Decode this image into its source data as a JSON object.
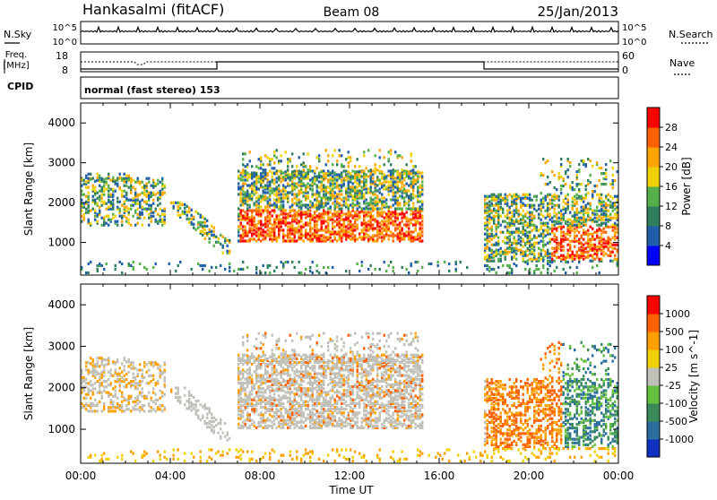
{
  "header": {
    "station": "Hankasalmi (fitACF)",
    "beam": "Beam 08",
    "date": "25/Jan/2013"
  },
  "noise_panel": {
    "left_label": "N.Sky",
    "left_ticks": [
      "10^5",
      "10^0"
    ],
    "right_label": "N.Search",
    "right_ticks": [
      "10^5",
      "10^0"
    ]
  },
  "freq_panel": {
    "left_label_1": "Freq.",
    "left_label_2": "[MHz]",
    "left_ticks": [
      "18",
      "8"
    ],
    "right_label": "Nave",
    "right_ticks": [
      "60",
      "0"
    ]
  },
  "cpid_panel": {
    "label": "CPID",
    "text": "normal (fast stereo) 153"
  },
  "chart_data": [
    {
      "type": "heatmap",
      "name": "power",
      "ylabel": "Slant Range [km]",
      "yticks": [
        "4000",
        "3000",
        "2000",
        "1000"
      ],
      "ylim": [
        180,
        4500
      ],
      "xlim": [
        0,
        24
      ],
      "colorbar_label": "Power [dB]",
      "colorbar_ticks": [
        "28",
        "24",
        "20",
        "16",
        "12",
        "8",
        "4"
      ],
      "colors": [
        "#0000ff",
        "#1f5fa8",
        "#2f7f5f",
        "#56b04a",
        "#f0d000",
        "#ffa500",
        "#ff6000",
        "#ff0000"
      ]
    },
    {
      "type": "heatmap",
      "name": "velocity",
      "ylabel": "Slant Range [km]",
      "yticks": [
        "4000",
        "3000",
        "2000",
        "1000"
      ],
      "ylim": [
        180,
        4500
      ],
      "xlim": [
        0,
        24
      ],
      "colorbar_label": "Velocity [m s^-1]",
      "colorbar_ticks": [
        "1000",
        "500",
        "100",
        "25",
        "-25",
        "-100",
        "-500",
        "-1000"
      ],
      "colors": [
        "#1030c0",
        "#2a6e9e",
        "#3a8a5a",
        "#66c040",
        "#c0c0b8",
        "#f0d000",
        "#ffa000",
        "#ff6000",
        "#ff0000"
      ]
    }
  ],
  "time_axis": {
    "label": "Time UT",
    "ticks": [
      "00:00",
      "04:00",
      "08:00",
      "12:00",
      "16:00",
      "20:00",
      "00:00"
    ]
  }
}
